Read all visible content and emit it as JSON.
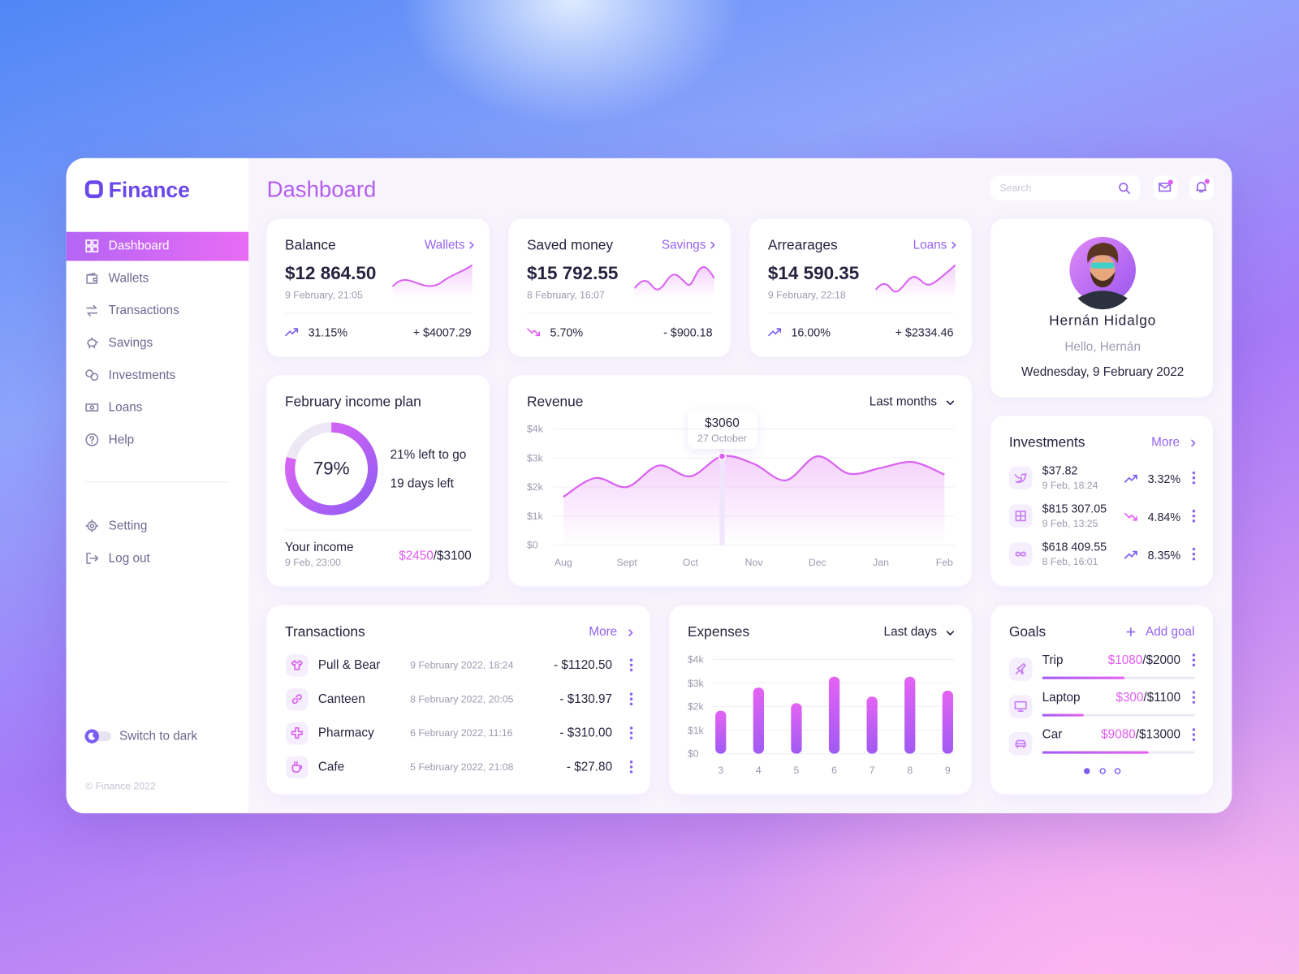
{
  "brand": "Finance",
  "nav": {
    "main": [
      "Dashboard",
      "Wallets",
      "Transactions",
      "Savings",
      "Investments",
      "Loans",
      "Help"
    ],
    "active": 0,
    "bottom": [
      "Setting",
      "Log out"
    ],
    "switch": "Switch to dark",
    "copyright": "© Finance 2022"
  },
  "header": {
    "title": "Dashboard",
    "search": "Search"
  },
  "stat_cards": [
    {
      "title": "Balance",
      "link": "Wallets",
      "amount": "$12 864.50",
      "date": "9 February, 21:05",
      "change": "31.15%",
      "trend": "up",
      "delta": "+ $4007.29"
    },
    {
      "title": "Saved money",
      "link": "Savings",
      "amount": "$15 792.55",
      "date": "8 February, 16:07",
      "change": "5.70%",
      "trend": "down",
      "delta": "- $900.18"
    },
    {
      "title": "Arrearages",
      "link": "Loans",
      "amount": "$14 590.35",
      "date": "9 February, 22:18",
      "change": "16.00%",
      "trend": "up",
      "delta": "+ $2334.46"
    }
  ],
  "profile": {
    "name": "Hernán Hidalgo",
    "greeting": "Hello, Hernán",
    "date": "Wednesday, 9 February 2022"
  },
  "income_plan": {
    "title": "February income plan",
    "value": 79,
    "value_label": "79%",
    "left": "21% left to go",
    "days": "19 days left",
    "income_label": "Your income",
    "income_date": "9 Feb, 23:00",
    "income": "$2450",
    "target": "/$3100"
  },
  "revenue": {
    "title": "Revenue",
    "filter": "Last months",
    "categories": [
      "Aug",
      null,
      "Sept",
      null,
      "Oct",
      null,
      "Nov",
      null,
      "Dec",
      null,
      "Jan",
      null,
      "Feb"
    ],
    "values": [
      1660,
      2310,
      2000,
      2740,
      2370,
      3060,
      2800,
      2230,
      3060,
      2460,
      2660,
      2860,
      2430
    ],
    "ylim": [
      0,
      4000
    ],
    "yticks": [
      {
        "value": 0,
        "label": "$0"
      },
      {
        "value": 1000,
        "label": "$1k"
      },
      {
        "value": 2000,
        "label": "$2k"
      },
      {
        "value": 3000,
        "label": "$3k"
      },
      {
        "value": 4000,
        "label": "$4k"
      }
    ],
    "grid": true,
    "color": "#d962f2",
    "tooltip": {
      "value": 3060,
      "label": "$3060",
      "date": "27 October"
    }
  },
  "investments": {
    "title": "Investments",
    "link": "More",
    "items": [
      {
        "amount": "$37.82",
        "date": "9 Feb, 18:24",
        "change": "3.32%",
        "trend": "up"
      },
      {
        "amount": "$815 307.05",
        "date": "9 Feb, 13:25",
        "change": "4.84%",
        "trend": "down"
      },
      {
        "amount": "$618 409.55",
        "date": "8 Feb, 16:01",
        "change": "8.35%",
        "trend": "up"
      }
    ]
  },
  "transactions": {
    "title": "Transactions",
    "link": "More",
    "rows": [
      {
        "name": "Pull & Bear",
        "date": "9 February 2022, 18:24",
        "amount": "- $1120.50"
      },
      {
        "name": "Canteen",
        "date": "8 February 2022, 20:05",
        "amount": "- $130.97"
      },
      {
        "name": "Pharmacy",
        "date": "6 February 2022, 11:16",
        "amount": "- $310.00"
      },
      {
        "name": "Cafe",
        "date": "5 February 2022, 21:08",
        "amount": "- $27.80"
      }
    ]
  },
  "expenses": {
    "title": "Expenses",
    "filter": "Last days",
    "categories": [
      "3",
      "4",
      "5",
      "6",
      "7",
      "8",
      "9"
    ],
    "values": [
      1820,
      2800,
      2140,
      3260,
      2420,
      3260,
      2670
    ],
    "ylim": [
      0,
      4000
    ],
    "yticks": [
      {
        "value": 0,
        "label": "$0"
      },
      {
        "value": 1000,
        "label": "$1k"
      },
      {
        "value": 2000,
        "label": "$2k"
      },
      {
        "value": 3000,
        "label": "$3k"
      },
      {
        "value": 4000,
        "label": "$4k"
      }
    ],
    "grid": true,
    "color": "#b35cf3"
  },
  "goals": {
    "title": "Goals",
    "add": "Add goal",
    "items": [
      {
        "name": "Trip",
        "saved": 1080,
        "saved_label": "$1080",
        "target": 2000,
        "target_label": "/$2000"
      },
      {
        "name": "Laptop",
        "saved": 300,
        "saved_label": "$300",
        "target": 1100,
        "target_label": "/$1100"
      },
      {
        "name": "Car",
        "saved": 9080,
        "saved_label": "$9080",
        "target": 13000,
        "target_label": "/$13000"
      }
    ]
  }
}
